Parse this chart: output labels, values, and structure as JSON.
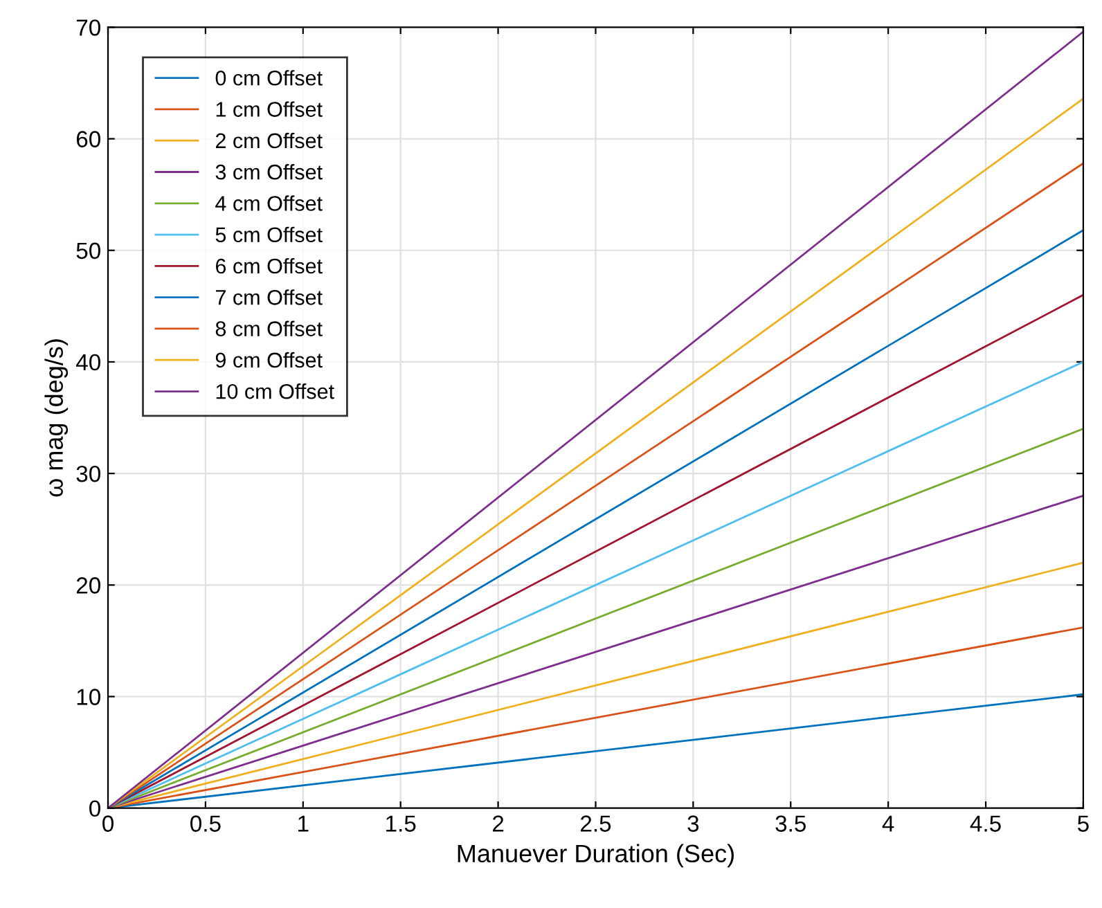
{
  "chart_data": {
    "type": "line",
    "xlabel": "Manuever Duration (Sec)",
    "ylabel": "ω mag (deg/s)",
    "x": [
      0,
      5
    ],
    "series": [
      {
        "name": "0 cm Offset",
        "color": "#0072bd",
        "values": [
          0,
          10.2
        ]
      },
      {
        "name": "1 cm Offset",
        "color": "#d95319",
        "values": [
          0,
          16.2
        ]
      },
      {
        "name": "2 cm Offset",
        "color": "#edb120",
        "values": [
          0,
          22
        ]
      },
      {
        "name": "3 cm Offset",
        "color": "#7e2f8e",
        "values": [
          0,
          28
        ]
      },
      {
        "name": "4 cm Offset",
        "color": "#77ac30",
        "values": [
          0,
          34
        ]
      },
      {
        "name": "5 cm Offset",
        "color": "#4dbeee",
        "values": [
          0,
          40
        ]
      },
      {
        "name": "6 cm Offset",
        "color": "#a2142f",
        "values": [
          0,
          46
        ]
      },
      {
        "name": "7 cm Offset",
        "color": "#0072bd",
        "values": [
          0,
          51.8
        ]
      },
      {
        "name": "8 cm Offset",
        "color": "#d95319",
        "values": [
          0,
          57.8
        ]
      },
      {
        "name": "9 cm Offset",
        "color": "#edb120",
        "values": [
          0,
          63.6
        ]
      },
      {
        "name": "10 cm Offset",
        "color": "#7e2f8e",
        "values": [
          0,
          69.6
        ]
      }
    ],
    "xlim": [
      0,
      5
    ],
    "xticks": [
      0,
      0.5,
      1,
      1.5,
      2,
      2.5,
      3,
      3.5,
      4,
      4.5,
      5
    ],
    "ylim": [
      0,
      70
    ],
    "yticks": [
      0,
      10,
      20,
      30,
      40,
      50,
      60,
      70
    ],
    "grid": true,
    "legend": "top left",
    "marker": "none",
    "line_style": "solid"
  }
}
